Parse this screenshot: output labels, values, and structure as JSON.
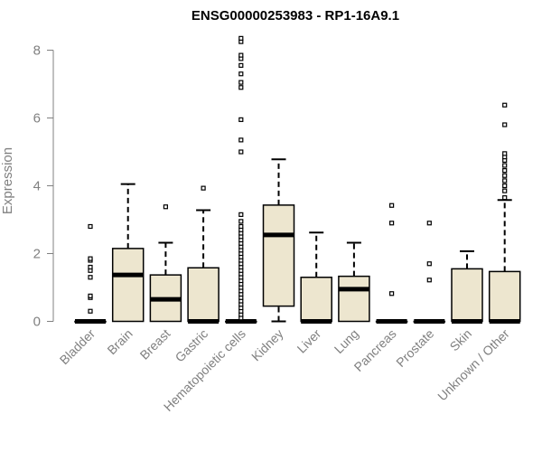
{
  "chart_data": {
    "type": "box",
    "title": "ENSG00000253983 - RP1-16A9.1",
    "ylabel": "Expression",
    "xlabel": "",
    "ylim": [
      0,
      8.4
    ],
    "yticks": [
      0,
      2,
      4,
      6,
      8
    ],
    "grid": false,
    "box_fill": "#ede6cf",
    "categories": [
      "Bladder",
      "Brain",
      "Breast",
      "Gastric",
      "Hematopoietic cells",
      "Kidney",
      "Liver",
      "Lung",
      "Pancreas",
      "Prostate",
      "Skin",
      "Unknown / Other"
    ],
    "boxes": [
      {
        "min": 0,
        "q1": 0,
        "median": 0,
        "q3": 0,
        "max": 0,
        "outliers": [
          0.3,
          0.7,
          0.75,
          1.3,
          1.5,
          1.6,
          1.8,
          1.85,
          2.8
        ]
      },
      {
        "min": 0,
        "q1": 0,
        "median": 1.37,
        "q3": 2.15,
        "max": 4.05,
        "outliers": []
      },
      {
        "min": 0,
        "q1": 0,
        "median": 0.65,
        "q3": 1.37,
        "max": 2.32,
        "outliers": [
          3.38
        ]
      },
      {
        "min": 0,
        "q1": 0,
        "median": 0,
        "q3": 1.58,
        "max": 3.28,
        "outliers": [
          3.93
        ]
      },
      {
        "min": 0,
        "q1": 0,
        "median": 0,
        "q3": 0,
        "max": 0,
        "outliers": [
          0.1,
          0.2,
          0.3,
          0.4,
          0.5,
          0.6,
          0.7,
          0.8,
          0.9,
          1.0,
          1.1,
          1.2,
          1.3,
          1.4,
          1.5,
          1.6,
          1.7,
          1.8,
          1.9,
          2.0,
          2.1,
          2.2,
          2.3,
          2.4,
          2.5,
          2.6,
          2.7,
          2.8,
          2.95,
          3.15,
          5.0,
          5.35,
          5.95,
          6.9,
          7.05,
          7.3,
          7.55,
          7.75,
          7.85,
          8.25,
          8.35
        ]
      },
      {
        "min": 0,
        "q1": 0.45,
        "median": 2.55,
        "q3": 3.43,
        "max": 4.78,
        "outliers": []
      },
      {
        "min": 0,
        "q1": 0,
        "median": 0,
        "q3": 1.3,
        "max": 2.62,
        "outliers": []
      },
      {
        "min": 0,
        "q1": 0,
        "median": 0.95,
        "q3": 1.33,
        "max": 2.32,
        "outliers": []
      },
      {
        "min": 0,
        "q1": 0,
        "median": 0,
        "q3": 0,
        "max": 0,
        "outliers": [
          0.82,
          2.9,
          3.42
        ]
      },
      {
        "min": 0,
        "q1": 0,
        "median": 0,
        "q3": 0,
        "max": 0,
        "outliers": [
          1.22,
          1.7,
          2.9
        ]
      },
      {
        "min": 0,
        "q1": 0,
        "median": 0,
        "q3": 1.55,
        "max": 2.07,
        "outliers": []
      },
      {
        "min": 0,
        "q1": 0,
        "median": 0,
        "q3": 1.47,
        "max": 3.58,
        "outliers": [
          3.65,
          3.85,
          4.0,
          4.15,
          4.3,
          4.45,
          4.6,
          4.75,
          4.85,
          4.95,
          5.8,
          6.38
        ]
      }
    ]
  }
}
